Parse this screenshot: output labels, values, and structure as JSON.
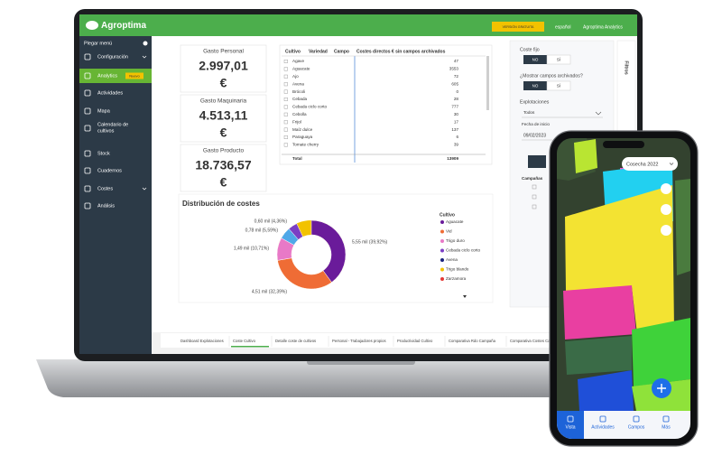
{
  "header": {
    "logo": "Agroptima",
    "button": "VERSIÓN GRATUITA",
    "language": "español",
    "account": "Agroptima Analytics"
  },
  "sidebar": {
    "collapse": "Plegar menú",
    "items": [
      {
        "label": "Configuración"
      },
      {
        "label": "Analytics",
        "badge": "Nuevo"
      },
      {
        "label": "Actividades"
      },
      {
        "label": "Mapa"
      },
      {
        "label": "Calendario de cultivos"
      },
      {
        "label": "Stock"
      },
      {
        "label": "Cuadernos"
      },
      {
        "label": "Costes"
      },
      {
        "label": "Análisis"
      }
    ]
  },
  "kpis": [
    {
      "title": "Gasto Personal",
      "value": "2.997,01",
      "unit": "€"
    },
    {
      "title": "Gasto Maquinaria",
      "value": "4.513,11",
      "unit": "€"
    },
    {
      "title": "Gasto Producto",
      "value": "18.736,57",
      "unit": "€"
    }
  ],
  "table": {
    "columns": [
      "Cultivo",
      "Variedad",
      "Campo",
      "Costes directos € sin campos archivados"
    ],
    "rows": [
      [
        "Agave",
        "47"
      ],
      [
        "Aguacate",
        "3553"
      ],
      [
        "Ajo",
        "72"
      ],
      [
        "Avena",
        "605"
      ],
      [
        "Brócoli",
        "0"
      ],
      [
        "Cebada",
        "28"
      ],
      [
        "Cebada ciclo corto",
        "777"
      ],
      [
        "Cebolla",
        "30"
      ],
      [
        "Frijol",
        "17"
      ],
      [
        "Maíz dulce",
        "137"
      ],
      [
        "Paraguaya",
        "6"
      ],
      [
        "Tomate cherry",
        "39"
      ]
    ],
    "total": [
      "Total",
      "13909"
    ]
  },
  "donut": {
    "title": "Distribución de costes",
    "segments": [
      {
        "label": "5,55 mil (39,92%)",
        "percent": 39.92,
        "color": "#6a1b9a"
      },
      {
        "label": "4,51 mil (32,39%)",
        "percent": 32.39,
        "color": "#ef6c35"
      },
      {
        "label": "1,49 mil (10,71%)",
        "percent": 10.71,
        "color": "#e879c7"
      },
      {
        "label": "0,78 mil (5,59%)",
        "percent": 5.59,
        "color": "#4fa8e8"
      },
      {
        "label": "0,60 mil (4,36%)",
        "percent": 4.36,
        "color": "#7b3fc4"
      }
    ],
    "legend_title": "Cultivo",
    "legend": [
      {
        "name": "Aguacate",
        "color": "#6a1b9a"
      },
      {
        "name": "Vid",
        "color": "#ef6c35"
      },
      {
        "name": "Trigo duro",
        "color": "#e879c7"
      },
      {
        "name": "Cebada ciclo corto",
        "color": "#7b3fc4"
      },
      {
        "name": "Avena",
        "color": "#1a237e"
      },
      {
        "name": "Trigo blando",
        "color": "#f2c200"
      },
      {
        "name": "Zarzamora",
        "color": "#e53935"
      }
    ]
  },
  "filters": {
    "tab": "Filtros",
    "fixed_cost": "Coste fijo",
    "archived": "¿Mostrar campos archivados?",
    "no": "NO",
    "yes": "SÍ",
    "farms": "Explotaciones",
    "farms_value": "Todos",
    "start_date": "Fecha de inicio",
    "start_value": "09/02/2023",
    "seasons": "Campañas"
  },
  "tabs": [
    "Dashboard Explotaciones",
    "Coste Cultivo",
    "Detalle coste de cultivos",
    "Personal - Trabajadores propios",
    "Productividad Cultivo",
    "Comparativa Rdo Campaña",
    "Comparativa Costes Cam"
  ],
  "phone": {
    "season": "Cosecha 2022",
    "nav": [
      "Vista",
      "Actividades",
      "Campos",
      "Más"
    ]
  }
}
